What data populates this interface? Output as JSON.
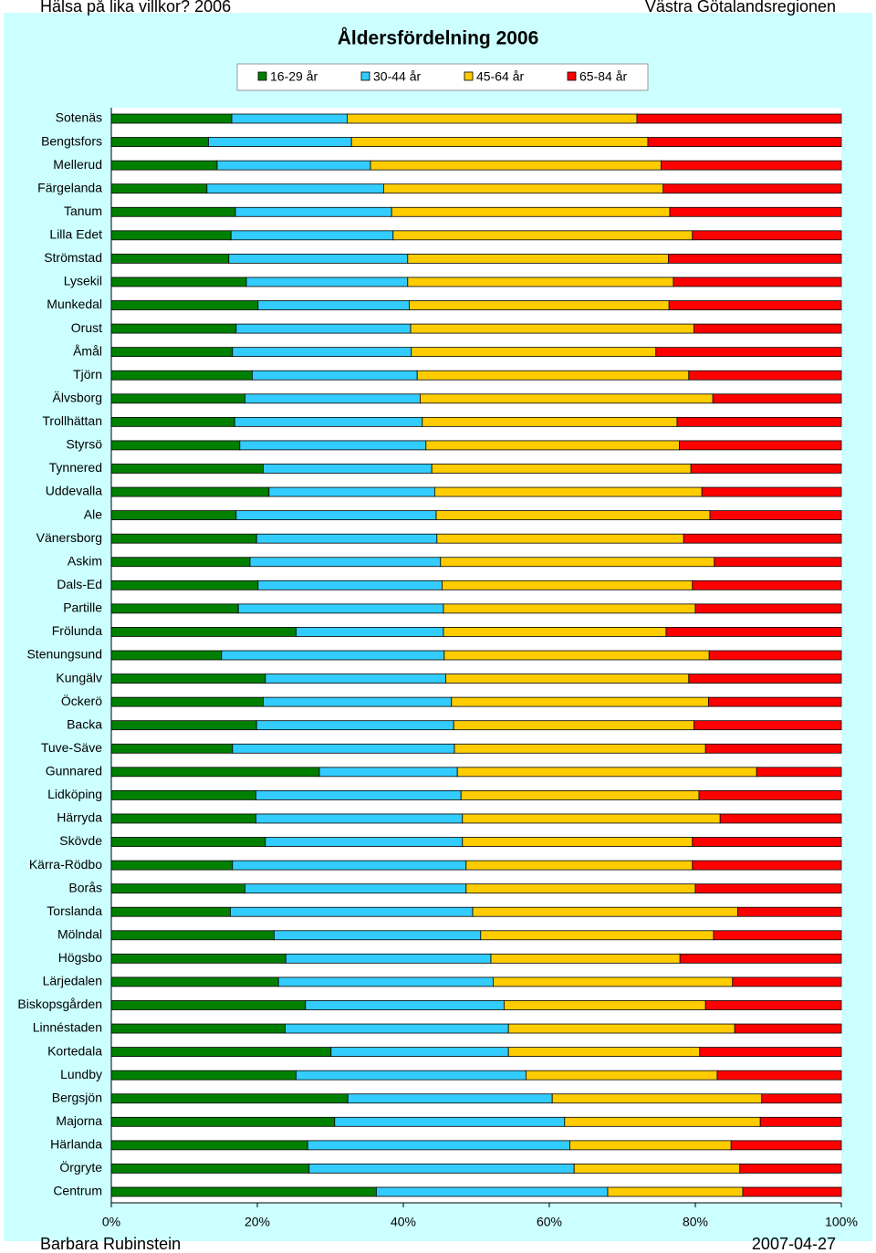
{
  "header": {
    "left": "Hälsa på lika villkor? 2006",
    "right": "Västra Götalandsregionen"
  },
  "footer": {
    "left": "Barbara Rubinstein",
    "right": "2007-04-27"
  },
  "chart_data": {
    "type": "stacked-bar-horizontal-percent",
    "title": "Åldersfördelning 2006",
    "categories": [
      "Sotenäs",
      "Bengtsfors",
      "Mellerud",
      "Färgelanda",
      "Tanum",
      "Lilla Edet",
      "Strömstad",
      "Lysekil",
      "Munkedal",
      "Orust",
      "Åmål",
      "Tjörn",
      "Älvsborg",
      "Trollhättan",
      "Styrsö",
      "Tynnered",
      "Uddevalla",
      "Ale",
      "Vänersborg",
      "Askim",
      "Dals-Ed",
      "Partille",
      "Frölunda",
      "Stenungsund",
      "Kungälv",
      "Öckerö",
      "Backa",
      "Tuve-Säve",
      "Gunnared",
      "Lidköping",
      "Härryda",
      "Skövde",
      "Kärra-Rödbo",
      "Borås",
      "Torslanda",
      "Mölndal",
      "Högsbo",
      "Lärjedalen",
      "Biskopsgården",
      "Linnéstaden",
      "Kortedala",
      "Lundby",
      "Bergsjön",
      "Majorna",
      "Härlanda",
      "Örgryte",
      "Centrum"
    ],
    "series": [
      {
        "name": "16-29 år",
        "color": "#008000",
        "values": [
          16.5,
          13.3,
          14.5,
          13.1,
          17,
          16.4,
          16.1,
          18.5,
          20.1,
          17.1,
          16.6,
          19.3,
          18.3,
          16.9,
          17.6,
          20.8,
          21.6,
          17.1,
          19.9,
          19,
          20.1,
          17.4,
          25.3,
          15.1,
          21.1,
          20.8,
          19.9,
          16.6,
          28.5,
          19.8,
          19.8,
          21.1,
          16.6,
          18.3,
          16.3,
          22.3,
          23.9,
          22.9,
          26.6,
          23.8,
          30.1,
          25.3,
          32.4,
          30.6,
          26.9,
          27.1,
          36.3
        ]
      },
      {
        "name": "30-44 år",
        "color": "#33ccff",
        "values": [
          15.8,
          19.6,
          21,
          24.2,
          21.4,
          22.2,
          24.5,
          22.1,
          20.7,
          23.9,
          24.5,
          22.6,
          24,
          25.7,
          25.5,
          23.1,
          22.7,
          27.4,
          24.7,
          26.1,
          25.2,
          28.1,
          20.2,
          30.5,
          24.7,
          25.8,
          27,
          30.4,
          18.9,
          28.1,
          28.3,
          27,
          32,
          30.3,
          33.2,
          28.3,
          28.1,
          29.4,
          27.2,
          30.6,
          24.3,
          31.5,
          28,
          31.5,
          35.9,
          36.3,
          31.7
        ]
      },
      {
        "name": "45-64 år",
        "color": "#ffcc00",
        "values": [
          39.7,
          40.6,
          39.8,
          38.3,
          38.1,
          41,
          35.7,
          36.4,
          35.6,
          38.8,
          33.5,
          37.2,
          40.1,
          34.9,
          34.7,
          35.5,
          36.6,
          37.5,
          33.8,
          37.5,
          34.3,
          34.5,
          30.5,
          36.3,
          33.3,
          35.2,
          32.9,
          34.4,
          41,
          32.6,
          35.3,
          31.5,
          31,
          31.4,
          36.3,
          31.9,
          25.9,
          32.8,
          27.6,
          31,
          26.2,
          26.2,
          28.7,
          26.8,
          22.1,
          22.7,
          18.5
        ]
      },
      {
        "name": "65-84 år",
        "color": "#ff0000",
        "values": [
          28,
          26.5,
          24.7,
          24.4,
          23.5,
          20.4,
          23.7,
          23,
          23.6,
          20.2,
          25.4,
          20.9,
          17.6,
          22.5,
          22.2,
          20.6,
          19.1,
          18,
          21.6,
          17.4,
          20.4,
          20,
          24,
          18.1,
          20.9,
          18.2,
          20.2,
          18.6,
          11.6,
          19.5,
          16.6,
          20.4,
          20.4,
          20,
          14.2,
          17.5,
          22.1,
          14.9,
          18.6,
          14.6,
          19.4,
          17,
          10.9,
          11.1,
          15.1,
          13.9,
          13.5
        ]
      }
    ],
    "xlim": [
      0,
      100
    ],
    "xticks": [
      {
        "value": 0,
        "label": "0%"
      },
      {
        "value": 20,
        "label": "20%"
      },
      {
        "value": 40,
        "label": "40%"
      },
      {
        "value": 60,
        "label": "60%"
      },
      {
        "value": 80,
        "label": "80%"
      },
      {
        "value": 100,
        "label": "100%"
      }
    ]
  }
}
